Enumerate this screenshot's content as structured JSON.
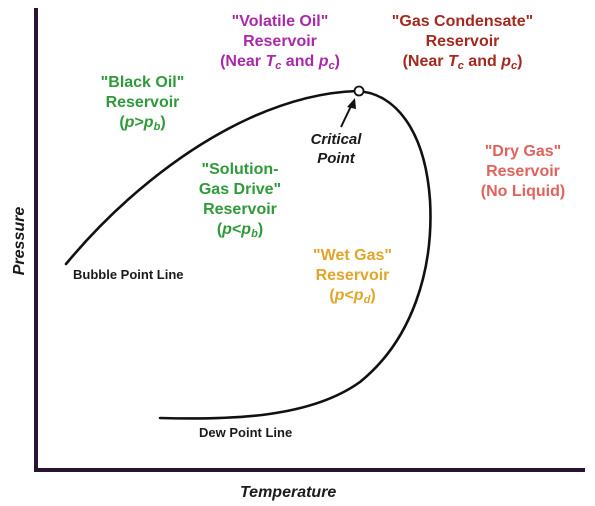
{
  "colors": {
    "axis": "#2a1436",
    "curve": "#111111",
    "black_oil": "#2f9a3a",
    "solution_gas": "#2f9a3a",
    "volatile_oil": "#a82aa8",
    "gas_condensate": "#a3291f",
    "dry_gas": "#e0625c",
    "wet_gas": "#e0a52a",
    "text_dark": "#1a1a1a"
  },
  "axes": {
    "x_label": "Temperature",
    "y_label": "Pressure"
  },
  "curve_labels": {
    "bubble_point": "Bubble Point Line",
    "dew_point": "Dew Point Line",
    "critical_point": [
      "Critical",
      "Point"
    ]
  },
  "regions": {
    "black_oil": {
      "line1": "\"Black Oil\"",
      "line2": "Reservoir",
      "cond_p": "p",
      "cond_op": ">",
      "cond_sub": "b"
    },
    "solution_gas": {
      "line1": "\"Solution-",
      "line2": "Gas Drive\"",
      "line3": "Reservoir",
      "cond_p": "p",
      "cond_op": "<",
      "cond_sub": "b"
    },
    "volatile_oil": {
      "line1": "\"Volatile Oil\"",
      "line2": "Reservoir",
      "near": "(Near ",
      "t": "T",
      "t_sub": "c",
      "and": " and ",
      "p": "p",
      "p_sub": "c"
    },
    "gas_condensate": {
      "line1": "\"Gas Condensate\"",
      "line2": "Reservoir",
      "near": "(Near ",
      "t": "T",
      "t_sub": "c",
      "and": " and ",
      "p": "p",
      "p_sub": "c"
    },
    "dry_gas": {
      "line1": "\"Dry Gas\"",
      "line2": "Reservoir",
      "line3": "(No Liquid)"
    },
    "wet_gas": {
      "line1": "\"Wet Gas\"",
      "line2": "Reservoir",
      "cond_p": "p",
      "cond_op": "<",
      "cond_sub": "d"
    }
  }
}
